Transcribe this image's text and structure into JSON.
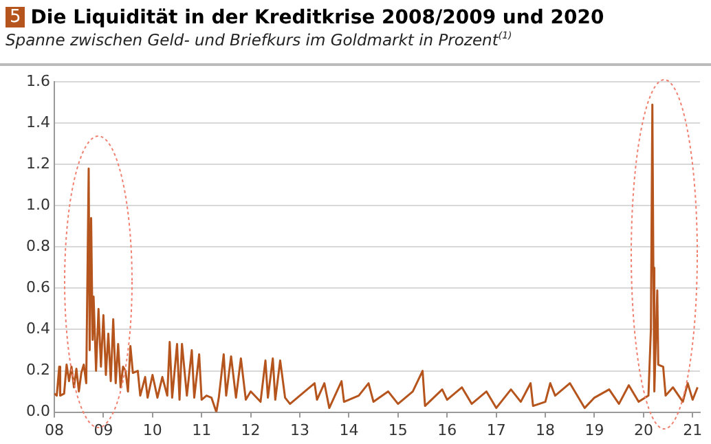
{
  "chart_data": {
    "type": "line",
    "title": "Die Liquidität in der Kreditkrise 2008/2009 und 2020",
    "subtitle": "Spanne zwischen Geld- und Briefkurs im Goldmarkt in Prozent$^{(1)}$",
    "annotations": [
      "5"
    ],
    "x": [
      2008.0,
      2008.05,
      2008.1,
      2008.12,
      2008.2,
      2008.25,
      2008.3,
      2008.35,
      2008.4,
      2008.45,
      2008.5,
      2008.55,
      2008.6,
      2008.65,
      2008.7,
      2008.72,
      2008.75,
      2008.78,
      2008.8,
      2008.85,
      2008.9,
      2008.95,
      2009.0,
      2009.05,
      2009.1,
      2009.15,
      2009.2,
      2009.25,
      2009.3,
      2009.35,
      2009.4,
      2009.45,
      2009.5,
      2009.55,
      2009.6,
      2009.7,
      2009.75,
      2009.85,
      2009.9,
      2010.0,
      2010.1,
      2010.2,
      2010.3,
      2010.35,
      2010.4,
      2010.5,
      2010.55,
      2010.6,
      2010.7,
      2010.8,
      2010.85,
      2010.95,
      2011.0,
      2011.1,
      2011.2,
      2011.3,
      2011.35,
      2011.45,
      2011.5,
      2011.6,
      2011.7,
      2011.8,
      2011.9,
      2012.0,
      2012.2,
      2012.3,
      2012.35,
      2012.45,
      2012.5,
      2012.6,
      2012.7,
      2012.8,
      2013.0,
      2013.3,
      2013.35,
      2013.5,
      2013.6,
      2013.85,
      2013.9,
      2014.2,
      2014.4,
      2014.5,
      2014.8,
      2015.0,
      2015.3,
      2015.5,
      2015.55,
      2015.9,
      2016.0,
      2016.3,
      2016.5,
      2016.8,
      2017.0,
      2017.3,
      2017.5,
      2017.7,
      2017.75,
      2018.0,
      2018.1,
      2018.2,
      2018.5,
      2018.8,
      2019.0,
      2019.3,
      2019.5,
      2019.7,
      2019.9,
      2020.1,
      2020.15,
      2020.18,
      2020.2,
      2020.22,
      2020.28,
      2020.3,
      2020.4,
      2020.45,
      2020.6,
      2020.8,
      2020.9,
      2021.0,
      2021.1
    ],
    "series": [
      {
        "color": "#b5541c",
        "values": [
          0.09,
          0.08,
          0.22,
          0.08,
          0.09,
          0.23,
          0.15,
          0.22,
          0.12,
          0.21,
          0.1,
          0.19,
          0.23,
          0.14,
          1.18,
          0.3,
          0.94,
          0.35,
          0.56,
          0.2,
          0.5,
          0.22,
          0.47,
          0.18,
          0.38,
          0.15,
          0.45,
          0.14,
          0.33,
          0.12,
          0.22,
          0.2,
          0.1,
          0.32,
          0.19,
          0.2,
          0.08,
          0.17,
          0.07,
          0.18,
          0.07,
          0.17,
          0.08,
          0.34,
          0.07,
          0.33,
          0.06,
          0.33,
          0.08,
          0.3,
          0.07,
          0.28,
          0.06,
          0.08,
          0.07,
          0.0,
          0.07,
          0.28,
          0.08,
          0.27,
          0.07,
          0.26,
          0.06,
          0.1,
          0.05,
          0.25,
          0.07,
          0.26,
          0.06,
          0.25,
          0.07,
          0.04,
          0.08,
          0.14,
          0.06,
          0.14,
          0.02,
          0.15,
          0.05,
          0.08,
          0.14,
          0.05,
          0.1,
          0.04,
          0.1,
          0.2,
          0.03,
          0.11,
          0.06,
          0.12,
          0.04,
          0.1,
          0.02,
          0.11,
          0.05,
          0.14,
          0.03,
          0.05,
          0.14,
          0.08,
          0.14,
          0.02,
          0.07,
          0.11,
          0.04,
          0.13,
          0.05,
          0.08,
          0.4,
          1.49,
          0.7,
          0.1,
          0.59,
          0.23,
          0.22,
          0.08,
          0.12,
          0.05,
          0.14,
          0.06,
          0.12
        ]
      }
    ],
    "xlim": [
      2008,
      2021.15
    ],
    "xticks": [
      {
        "value": 2008,
        "label": "08"
      },
      {
        "value": 2009,
        "label": "09"
      },
      {
        "value": 2010,
        "label": "10"
      },
      {
        "value": 2011,
        "label": "11"
      },
      {
        "value": 2012,
        "label": "12"
      },
      {
        "value": 2013,
        "label": "13"
      },
      {
        "value": 2014,
        "label": "14"
      },
      {
        "value": 2015,
        "label": "15"
      },
      {
        "value": 2016,
        "label": "16"
      },
      {
        "value": 2017,
        "label": "17"
      },
      {
        "value": 2018,
        "label": "18"
      },
      {
        "value": 2019,
        "label": "19"
      },
      {
        "value": 2020,
        "label": "20"
      },
      {
        "value": 2021,
        "label": "21"
      }
    ],
    "ylim": [
      0,
      1.6
    ],
    "yticks": [
      {
        "value": 0,
        "label": "0.0"
      },
      0.2,
      0.4,
      0.6,
      0.8,
      {
        "value": 1,
        "label": "1.0"
      },
      1.2,
      1.4,
      1.6
    ],
    "grid": "y",
    "legend": false,
    "marker": "none",
    "line_style": "solid"
  }
}
